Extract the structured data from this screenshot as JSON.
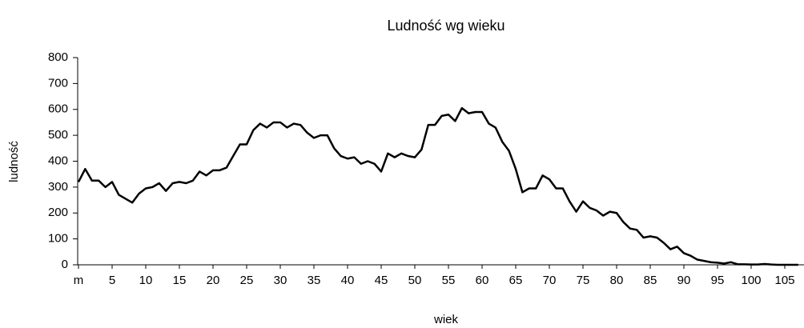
{
  "chart_data": {
    "type": "line",
    "title": "Ludność wg wieku",
    "x_label": "wiek",
    "y_label": "ludność",
    "categories": [
      "m",
      null,
      null,
      null,
      null,
      "5",
      null,
      null,
      null,
      null,
      "10",
      null,
      null,
      null,
      null,
      "15",
      null,
      null,
      null,
      null,
      "20",
      null,
      null,
      null,
      null,
      "25",
      null,
      null,
      null,
      null,
      "30",
      null,
      null,
      null,
      null,
      "35",
      null,
      null,
      null,
      null,
      "40",
      null,
      null,
      null,
      null,
      "45",
      null,
      null,
      null,
      null,
      "50",
      null,
      null,
      null,
      null,
      "55",
      null,
      null,
      null,
      null,
      "60",
      null,
      null,
      null,
      null,
      "65",
      null,
      null,
      null,
      null,
      "70",
      null,
      null,
      null,
      null,
      "75",
      null,
      null,
      null,
      null,
      "80",
      null,
      null,
      null,
      null,
      "85",
      null,
      null,
      null,
      null,
      "90",
      null,
      null,
      null,
      null,
      "95",
      null,
      null,
      null,
      null,
      "100",
      null,
      null,
      null,
      null,
      "105",
      null,
      null
    ],
    "series": [
      {
        "name": "ludność",
        "color": "#000000",
        "values": [
          320,
          370,
          325,
          325,
          300,
          320,
          270,
          255,
          240,
          275,
          295,
          300,
          315,
          285,
          315,
          320,
          315,
          325,
          360,
          345,
          365,
          365,
          375,
          420,
          465,
          465,
          520,
          545,
          530,
          550,
          550,
          530,
          545,
          540,
          510,
          490,
          500,
          500,
          450,
          420,
          410,
          415,
          390,
          400,
          390,
          360,
          430,
          415,
          430,
          420,
          415,
          445,
          540,
          540,
          575,
          580,
          555,
          605,
          585,
          590,
          590,
          545,
          530,
          475,
          440,
          370,
          280,
          295,
          295,
          345,
          330,
          295,
          295,
          245,
          205,
          245,
          220,
          210,
          190,
          205,
          200,
          165,
          140,
          135,
          105,
          110,
          105,
          85,
          60,
          70,
          45,
          35,
          20,
          15,
          10,
          8,
          5,
          10,
          2,
          2,
          1,
          1,
          3,
          1,
          0,
          0,
          0,
          0
        ]
      }
    ],
    "ylim": [
      0,
      800
    ],
    "yticks": [
      0,
      100,
      200,
      300,
      400,
      500,
      600,
      700,
      800
    ]
  }
}
